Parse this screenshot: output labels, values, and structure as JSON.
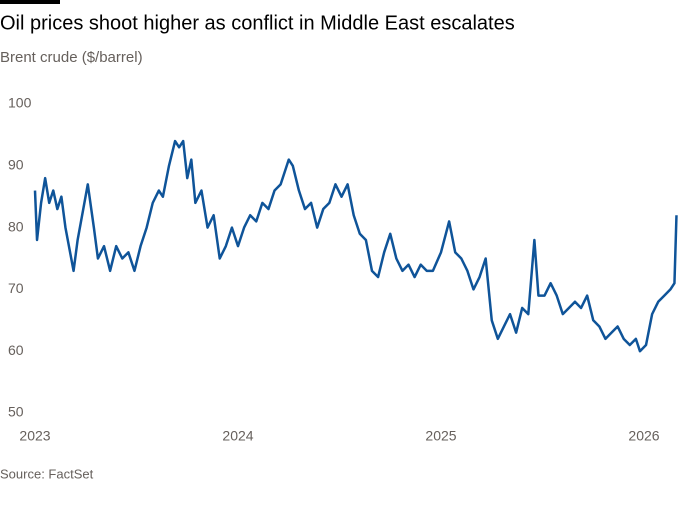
{
  "chart_data": {
    "type": "line",
    "title": "Oil prices shoot higher as conflict in Middle East escalates",
    "subtitle": "Brent crude ($/barrel)",
    "source": "Source: FactSet",
    "xlim": [
      2023,
      2026.2
    ],
    "xticks": [
      2023,
      2024,
      2025,
      2026
    ],
    "ylim": [
      50,
      100
    ],
    "yticks": [
      50,
      60,
      70,
      80,
      90,
      100
    ],
    "grid": false,
    "series": [
      {
        "name": "Brent crude",
        "color": "#0f5499",
        "x": [
          2023.0,
          2023.01,
          2023.03,
          2023.05,
          2023.07,
          2023.09,
          2023.11,
          2023.13,
          2023.15,
          2023.19,
          2023.21,
          2023.26,
          2023.29,
          2023.31,
          2023.34,
          2023.37,
          2023.4,
          2023.43,
          2023.46,
          2023.49,
          2023.52,
          2023.55,
          2023.58,
          2023.61,
          2023.63,
          2023.66,
          2023.69,
          2023.71,
          2023.73,
          2023.75,
          2023.77,
          2023.79,
          2023.82,
          2023.85,
          2023.88,
          2023.91,
          2023.94,
          2023.97,
          2024.0,
          2024.03,
          2024.06,
          2024.09,
          2024.12,
          2024.15,
          2024.18,
          2024.21,
          2024.25,
          2024.27,
          2024.3,
          2024.33,
          2024.36,
          2024.39,
          2024.42,
          2024.45,
          2024.48,
          2024.51,
          2024.54,
          2024.57,
          2024.6,
          2024.63,
          2024.66,
          2024.69,
          2024.72,
          2024.75,
          2024.78,
          2024.81,
          2024.84,
          2024.87,
          2024.9,
          2024.93,
          2024.96,
          2025.0,
          2025.04,
          2025.07,
          2025.1,
          2025.13,
          2025.16,
          2025.19,
          2025.22,
          2025.25,
          2025.28,
          2025.31,
          2025.34,
          2025.37,
          2025.4,
          2025.43,
          2025.46,
          2025.48,
          2025.51,
          2025.54,
          2025.57,
          2025.6,
          2025.63,
          2025.66,
          2025.69,
          2025.72,
          2025.75,
          2025.78,
          2025.81,
          2025.84,
          2025.87,
          2025.9,
          2025.93,
          2025.96,
          2025.98,
          2026.01,
          2026.04,
          2026.07,
          2026.1,
          2026.13,
          2026.15,
          2026.16
        ],
        "values": [
          86,
          78,
          84,
          88,
          84,
          86,
          83,
          85,
          80,
          73,
          78,
          87,
          80,
          75,
          77,
          73,
          77,
          75,
          76,
          73,
          77,
          80,
          84,
          86,
          85,
          90,
          94,
          93,
          94,
          88,
          91,
          84,
          86,
          80,
          82,
          75,
          77,
          80,
          77,
          80,
          82,
          81,
          84,
          83,
          86,
          87,
          91,
          90,
          86,
          83,
          84,
          80,
          83,
          84,
          87,
          85,
          87,
          82,
          79,
          78,
          73,
          72,
          76,
          79,
          75,
          73,
          74,
          72,
          74,
          73,
          73,
          76,
          81,
          76,
          75,
          73,
          70,
          72,
          75,
          65,
          62,
          64,
          66,
          63,
          67,
          66,
          78,
          69,
          69,
          71,
          69,
          66,
          67,
          68,
          67,
          69,
          65,
          64,
          62,
          63,
          64,
          62,
          61,
          62,
          60,
          61,
          66,
          68,
          69,
          70,
          71,
          82
        ]
      }
    ]
  }
}
